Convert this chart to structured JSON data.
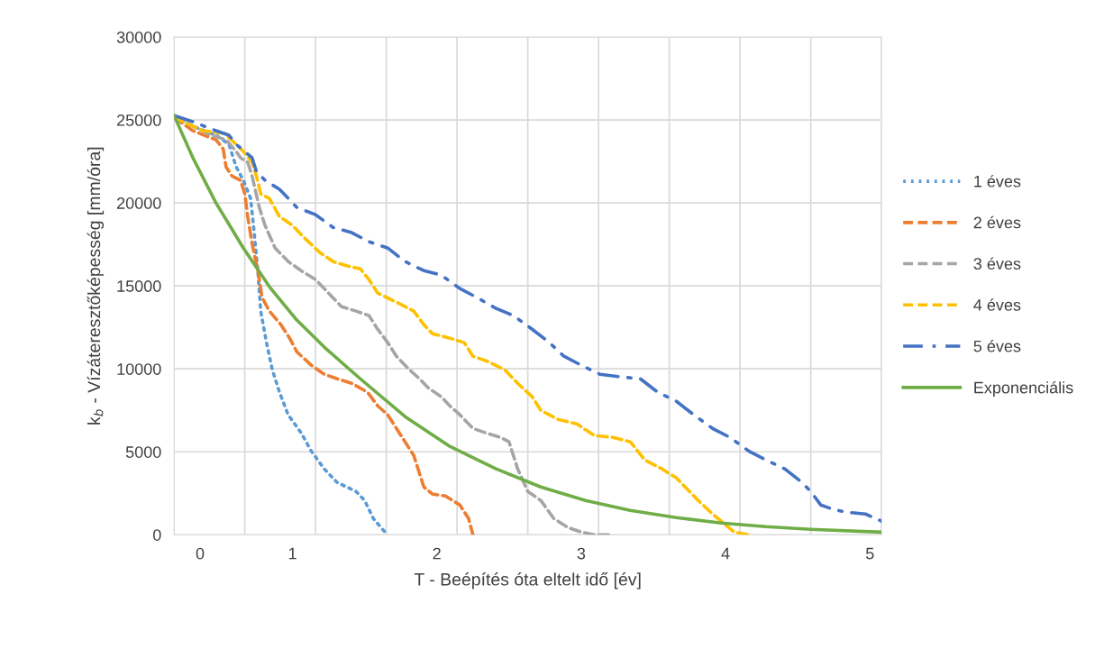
{
  "chart_data": {
    "type": "line",
    "xlabel": "T - Beépítés óta eltelt idő [év]",
    "ylabel": "k$_{b}$ - Vízáteresztőképesség [mm/óra]",
    "xlim": [
      0.18,
      5.08
    ],
    "xticks": [
      {
        "value": 0.18,
        "label": null
      },
      {
        "value": 0.67,
        "label": null
      },
      {
        "value": 1.16,
        "label": null
      },
      {
        "value": 1.65,
        "label": null
      },
      {
        "value": 2.14,
        "label": null
      },
      {
        "value": 2.63,
        "label": null
      },
      {
        "value": 3.12,
        "label": null
      },
      {
        "value": 3.61,
        "label": null
      },
      {
        "value": 4.1,
        "label": null
      },
      {
        "value": 4.59,
        "label": null
      },
      {
        "value": 5.08,
        "label": null
      },
      {
        "value": 0.36,
        "label": "0"
      },
      1,
      2,
      3,
      4,
      5
    ],
    "ylim": [
      0,
      30000
    ],
    "yticks": [
      0,
      5000,
      10000,
      15000,
      20000,
      25000,
      30000
    ],
    "grid": true,
    "legend": "right",
    "series": [
      {
        "name": "1 éves",
        "color": "#5b9bd5",
        "line_style": "dotted",
        "x": [
          0.18,
          0.31,
          0.47,
          0.56,
          0.61,
          0.66,
          0.71,
          0.73,
          0.76,
          0.78,
          0.82,
          0.86,
          0.91,
          0.97,
          1.06,
          1.13,
          1.22,
          1.31,
          1.44,
          1.5,
          1.56,
          1.63,
          1.66
        ],
        "values": [
          25160,
          24620,
          24080,
          23530,
          22170,
          21360,
          20270,
          18640,
          15920,
          13480,
          11580,
          9950,
          8590,
          7230,
          6140,
          5050,
          3970,
          3150,
          2610,
          2070,
          980,
          270,
          0
        ]
      },
      {
        "name": "2 éves",
        "color": "#ed7d31",
        "line_style": "dashed",
        "x": [
          0.18,
          0.31,
          0.47,
          0.52,
          0.54,
          0.58,
          0.64,
          0.67,
          0.69,
          0.72,
          0.76,
          0.79,
          0.84,
          0.92,
          0.98,
          1.03,
          1.13,
          1.22,
          1.31,
          1.41,
          1.52,
          1.59,
          1.66,
          1.72,
          1.78,
          1.84,
          1.91,
          1.97,
          2.06,
          2.16,
          2.22,
          2.25
        ],
        "values": [
          25160,
          24350,
          23800,
          23260,
          22170,
          21630,
          21360,
          20540,
          19180,
          17550,
          15920,
          14290,
          13480,
          12660,
          11850,
          11030,
          10220,
          9670,
          9400,
          9130,
          8590,
          7770,
          7230,
          6410,
          5600,
          4780,
          2880,
          2450,
          2340,
          1790,
          980,
          0
        ]
      },
      {
        "name": "3 éves",
        "color": "#a5a5a5",
        "line_style": "dashed",
        "x": [
          0.18,
          0.31,
          0.44,
          0.54,
          0.61,
          0.64,
          0.69,
          0.72,
          0.77,
          0.81,
          0.88,
          0.97,
          1.06,
          1.16,
          1.28,
          1.34,
          1.44,
          1.53,
          1.59,
          1.66,
          1.72,
          1.81,
          1.88,
          1.94,
          2.03,
          2.09,
          2.16,
          2.25,
          2.34,
          2.44,
          2.5,
          2.56,
          2.63,
          2.72,
          2.81,
          2.91,
          3.0,
          3.09,
          3.19
        ],
        "values": [
          25160,
          24620,
          24080,
          23800,
          23100,
          22720,
          22450,
          21630,
          19730,
          18640,
          17280,
          16470,
          15920,
          15380,
          14290,
          13750,
          13480,
          13210,
          12390,
          11580,
          10760,
          9950,
          9400,
          8860,
          8320,
          7770,
          7230,
          6410,
          6140,
          5870,
          5600,
          3970,
          2610,
          2070,
          980,
          430,
          160,
          0,
          0
        ]
      },
      {
        "name": "4 éves",
        "color": "#ffc000",
        "line_style": "dashed",
        "x": [
          0.18,
          0.38,
          0.53,
          0.61,
          0.66,
          0.72,
          0.75,
          0.78,
          0.84,
          0.91,
          1.0,
          1.09,
          1.19,
          1.28,
          1.38,
          1.47,
          1.53,
          1.59,
          1.72,
          1.84,
          1.91,
          1.97,
          2.09,
          2.19,
          2.25,
          2.34,
          2.47,
          2.56,
          2.66,
          2.72,
          2.84,
          2.97,
          3.09,
          3.22,
          3.34,
          3.44,
          3.56,
          3.66,
          3.72,
          3.81,
          3.91,
          3.97,
          4.06,
          4.16
        ],
        "values": [
          25160,
          24350,
          24190,
          23530,
          23100,
          22450,
          21630,
          20540,
          20270,
          19180,
          18640,
          17830,
          17010,
          16470,
          16200,
          16030,
          15380,
          14570,
          14020,
          13480,
          12660,
          12120,
          11850,
          11580,
          10760,
          10490,
          9950,
          9130,
          8320,
          7500,
          6960,
          6680,
          5980,
          5870,
          5600,
          4510,
          3970,
          3420,
          2880,
          2070,
          1250,
          820,
          160,
          0
        ]
      },
      {
        "name": "5 éves",
        "color": "#4472c4",
        "line_style": "dashdot",
        "x": [
          0.18,
          0.31,
          0.47,
          0.56,
          0.61,
          0.67,
          0.72,
          0.75,
          0.81,
          0.91,
          1.03,
          1.16,
          1.28,
          1.41,
          1.53,
          1.66,
          1.78,
          1.91,
          2.03,
          2.16,
          2.28,
          2.41,
          2.53,
          2.66,
          2.78,
          2.88,
          3.0,
          3.13,
          3.28,
          3.41,
          3.53,
          3.66,
          3.78,
          3.91,
          4.03,
          4.16,
          4.28,
          4.41,
          4.53,
          4.59,
          4.66,
          4.75,
          4.84,
          4.97,
          5.08
        ],
        "values": [
          25270,
          24890,
          24350,
          24080,
          23530,
          23100,
          22720,
          21900,
          21360,
          20820,
          19730,
          19290,
          18530,
          18210,
          17660,
          17280,
          16470,
          15920,
          15650,
          14840,
          14290,
          13640,
          13210,
          12390,
          11580,
          10760,
          10220,
          9670,
          9510,
          9400,
          8590,
          8040,
          7230,
          6410,
          5870,
          5050,
          4510,
          3970,
          3150,
          2610,
          1790,
          1520,
          1360,
          1250,
          820
        ]
      },
      {
        "name": "Exponenciális",
        "color": "#70ad47",
        "line_style": "solid",
        "x": [
          0.18,
          0.31,
          0.47,
          0.66,
          0.84,
          1.03,
          1.22,
          1.47,
          1.78,
          2.09,
          2.41,
          2.72,
          3.03,
          3.34,
          3.66,
          3.97,
          4.28,
          4.59,
          5.08
        ],
        "values": [
          25270,
          22720,
          20000,
          17280,
          14950,
          12940,
          11310,
          9400,
          7120,
          5330,
          3970,
          2880,
          2070,
          1470,
          1030,
          710,
          490,
          330,
          160
        ]
      }
    ]
  }
}
